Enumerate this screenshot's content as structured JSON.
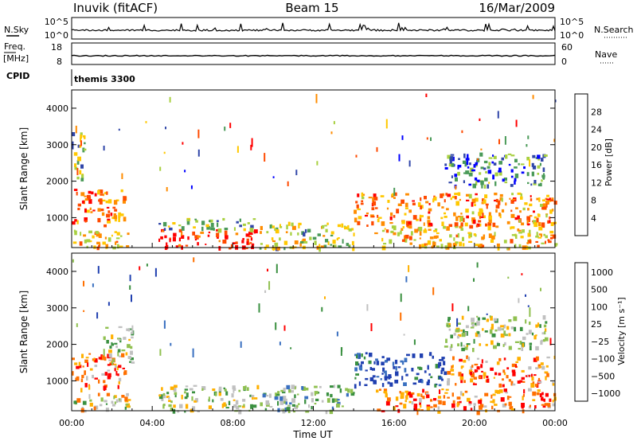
{
  "header": {
    "station": "Inuvik (fitACF)",
    "beam": "Beam 15",
    "date": "16/Mar/2009"
  },
  "top_panels": {
    "nsky_label": "N.Sky",
    "nsky_ticks": [
      "10^5",
      "10^0"
    ],
    "nsearch_label": "N.Search",
    "nsearch_ticks": [
      "10^5",
      "10^0"
    ],
    "freq_label": "Freq.",
    "freq_unit": "[MHz]",
    "freq_ticks": [
      "18",
      "8"
    ],
    "nave_label": "Nave",
    "nave_ticks": [
      "60",
      "0"
    ],
    "cpid_label": "CPID",
    "cpid_value": "themis 3300"
  },
  "chart_data": [
    {
      "type": "heatmap",
      "name": "power",
      "ylabel": "Slant Range [km]",
      "xlabel": "",
      "x_ticks": [
        "00:00",
        "04:00",
        "08:00",
        "12:00",
        "16:00",
        "20:00",
        "00:00"
      ],
      "y_ticks": [
        1000,
        2000,
        3000,
        4000
      ],
      "ylim": [
        180,
        4500
      ],
      "colorbar": {
        "label": "Power [dB]",
        "ticks": [
          "28",
          "24",
          "20",
          "16",
          "12",
          "8",
          "4"
        ],
        "colors": [
          "#ff0000",
          "#ff4a00",
          "#ff8c00",
          "#ffc800",
          "#a8d040",
          "#4a9a58",
          "#3046a8",
          "#0000ff"
        ]
      },
      "regions": [
        {
          "t0": 0.0,
          "t1": 2.6,
          "r0": 800,
          "r1": 1800,
          "level": 0.75
        },
        {
          "t0": 0.0,
          "t1": 2.8,
          "r0": 180,
          "r1": 700,
          "level": 0.6
        },
        {
          "t0": 0.0,
          "t1": 0.6,
          "r0": 2000,
          "r1": 3400,
          "level": 0.4
        },
        {
          "t0": 4.3,
          "t1": 9.2,
          "r0": 180,
          "r1": 700,
          "level": 0.9
        },
        {
          "t0": 4.3,
          "t1": 9.2,
          "r0": 700,
          "r1": 1000,
          "level": 0.35
        },
        {
          "t0": 9.3,
          "t1": 14.0,
          "r0": 180,
          "r1": 900,
          "level": 0.45
        },
        {
          "t0": 14.0,
          "t1": 24.0,
          "r0": 800,
          "r1": 1700,
          "level": 0.7
        },
        {
          "t0": 15.0,
          "t1": 24.0,
          "r0": 180,
          "r1": 800,
          "level": 0.6
        },
        {
          "t0": 18.5,
          "t1": 23.5,
          "r0": 1900,
          "r1": 2800,
          "level": 0.25
        }
      ]
    },
    {
      "type": "heatmap",
      "name": "velocity",
      "ylabel": "Slant Range [km]",
      "xlabel": "Time UT",
      "x_ticks": [
        "00:00",
        "04:00",
        "08:00",
        "12:00",
        "16:00",
        "20:00",
        "00:00"
      ],
      "y_ticks": [
        1000,
        2000,
        3000,
        4000
      ],
      "ylim": [
        180,
        4500
      ],
      "colorbar": {
        "label": "Velocity [m s⁻¹]",
        "ticks": [
          "1000",
          "500",
          "100",
          "25",
          "−25",
          "−100",
          "−500",
          "−1000"
        ],
        "colors": [
          "#2040b0",
          "#3a70c0",
          "#3a9040",
          "#90c050",
          "#c0c0c0",
          "#ffb000",
          "#ff7000",
          "#ff0000"
        ]
      },
      "regions": [
        {
          "t0": 0.0,
          "t1": 2.6,
          "r0": 800,
          "r1": 1800,
          "level": 0.2
        },
        {
          "t0": 1.5,
          "t1": 3.0,
          "r0": 1500,
          "r1": 2500,
          "level": 0.55
        },
        {
          "t0": 0.0,
          "t1": 2.8,
          "r0": 180,
          "r1": 700,
          "level": 0.45
        },
        {
          "t0": 4.3,
          "t1": 9.2,
          "r0": 180,
          "r1": 900,
          "level": 0.5
        },
        {
          "t0": 9.3,
          "t1": 14.0,
          "r0": 180,
          "r1": 900,
          "level": 0.6
        },
        {
          "t0": 14.0,
          "t1": 18.5,
          "r0": 900,
          "r1": 1800,
          "level": 0.92
        },
        {
          "t0": 18.5,
          "t1": 24.0,
          "r0": 900,
          "r1": 1700,
          "level": 0.22
        },
        {
          "t0": 15.0,
          "t1": 24.0,
          "r0": 180,
          "r1": 800,
          "level": 0.2
        },
        {
          "t0": 18.5,
          "t1": 23.5,
          "r0": 1900,
          "r1": 2800,
          "level": 0.5
        }
      ]
    }
  ]
}
